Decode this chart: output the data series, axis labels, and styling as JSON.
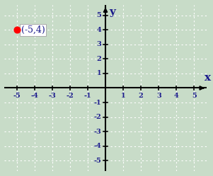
{
  "bg_color": "#c8dcc8",
  "grid_color": "#ffffff",
  "axis_color": "#000000",
  "point_x": -5,
  "point_y": 4,
  "point_color": "#ff0000",
  "point_size": 40,
  "label_text": "(-5,4)",
  "label_fontsize": 9,
  "label_font": "serif",
  "axis_label_x": "x",
  "axis_label_y": "y",
  "axis_label_fontsize": 11,
  "tick_fontsize": 7,
  "tick_color": "#1a1a8c",
  "xlim": [
    -5.7,
    5.7
  ],
  "ylim": [
    -5.7,
    5.7
  ],
  "xticks": [
    -5,
    -4,
    -3,
    -2,
    -1,
    1,
    2,
    3,
    4,
    5
  ],
  "yticks": [
    -5,
    -4,
    -3,
    -2,
    -1,
    1,
    2,
    3,
    4,
    5
  ],
  "figsize": [
    3.01,
    2.49
  ],
  "dpi": 100
}
